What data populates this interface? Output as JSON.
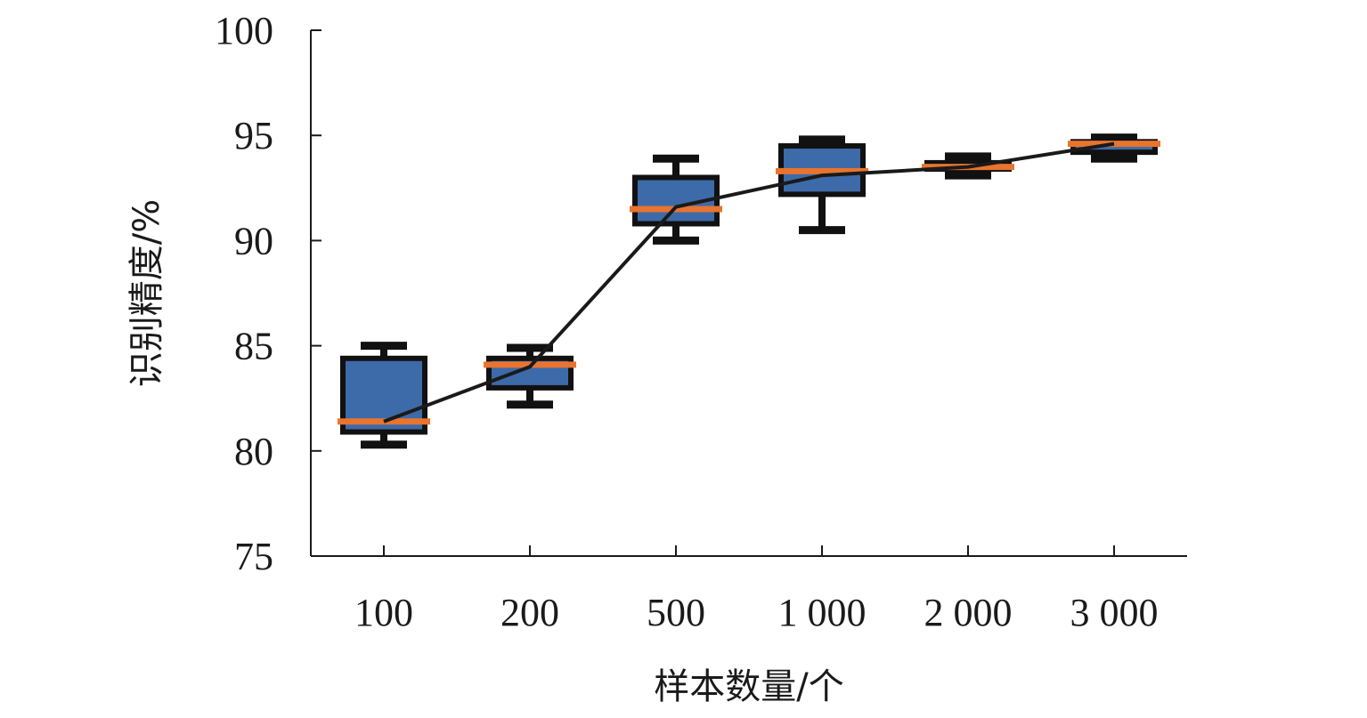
{
  "chart_data": {
    "type": "box",
    "title": "",
    "xlabel": "样本数量/个",
    "ylabel": "识别精度/%",
    "categories": [
      "100",
      "200",
      "500",
      "1 000",
      "2 000",
      "3 000"
    ],
    "ylim": [
      75,
      100
    ],
    "yticks": [
      75,
      80,
      85,
      90,
      95,
      100
    ],
    "grid": false,
    "legend": "none",
    "boxes": [
      {
        "category": "100",
        "whisker_low": 80.3,
        "q1": 80.9,
        "median": 81.4,
        "q3": 84.4,
        "whisker_high": 85.0
      },
      {
        "category": "200",
        "whisker_low": 82.2,
        "q1": 83.0,
        "median": 84.1,
        "q3": 84.4,
        "whisker_high": 84.9
      },
      {
        "category": "500",
        "whisker_low": 90.0,
        "q1": 90.8,
        "median": 91.5,
        "q3": 93.0,
        "whisker_high": 93.9
      },
      {
        "category": "1 000",
        "whisker_low": 90.5,
        "q1": 92.2,
        "median": 93.3,
        "q3": 94.5,
        "whisker_high": 94.8
      },
      {
        "category": "2 000",
        "whisker_low": 93.1,
        "q1": 93.4,
        "median": 93.5,
        "q3": 93.7,
        "whisker_high": 94.0
      },
      {
        "category": "3 000",
        "whisker_low": 93.9,
        "q1": 94.2,
        "median": 94.6,
        "q3": 94.7,
        "whisker_high": 94.9
      }
    ],
    "mean_line": [
      81.4,
      84.0,
      91.6,
      93.1,
      93.5,
      94.6
    ],
    "colors": {
      "box_fill": "#3d6aa8",
      "box_stroke": "#111111",
      "median": "#e8742f",
      "line": "#1a1a1a",
      "axis": "#1a1a1a"
    }
  }
}
